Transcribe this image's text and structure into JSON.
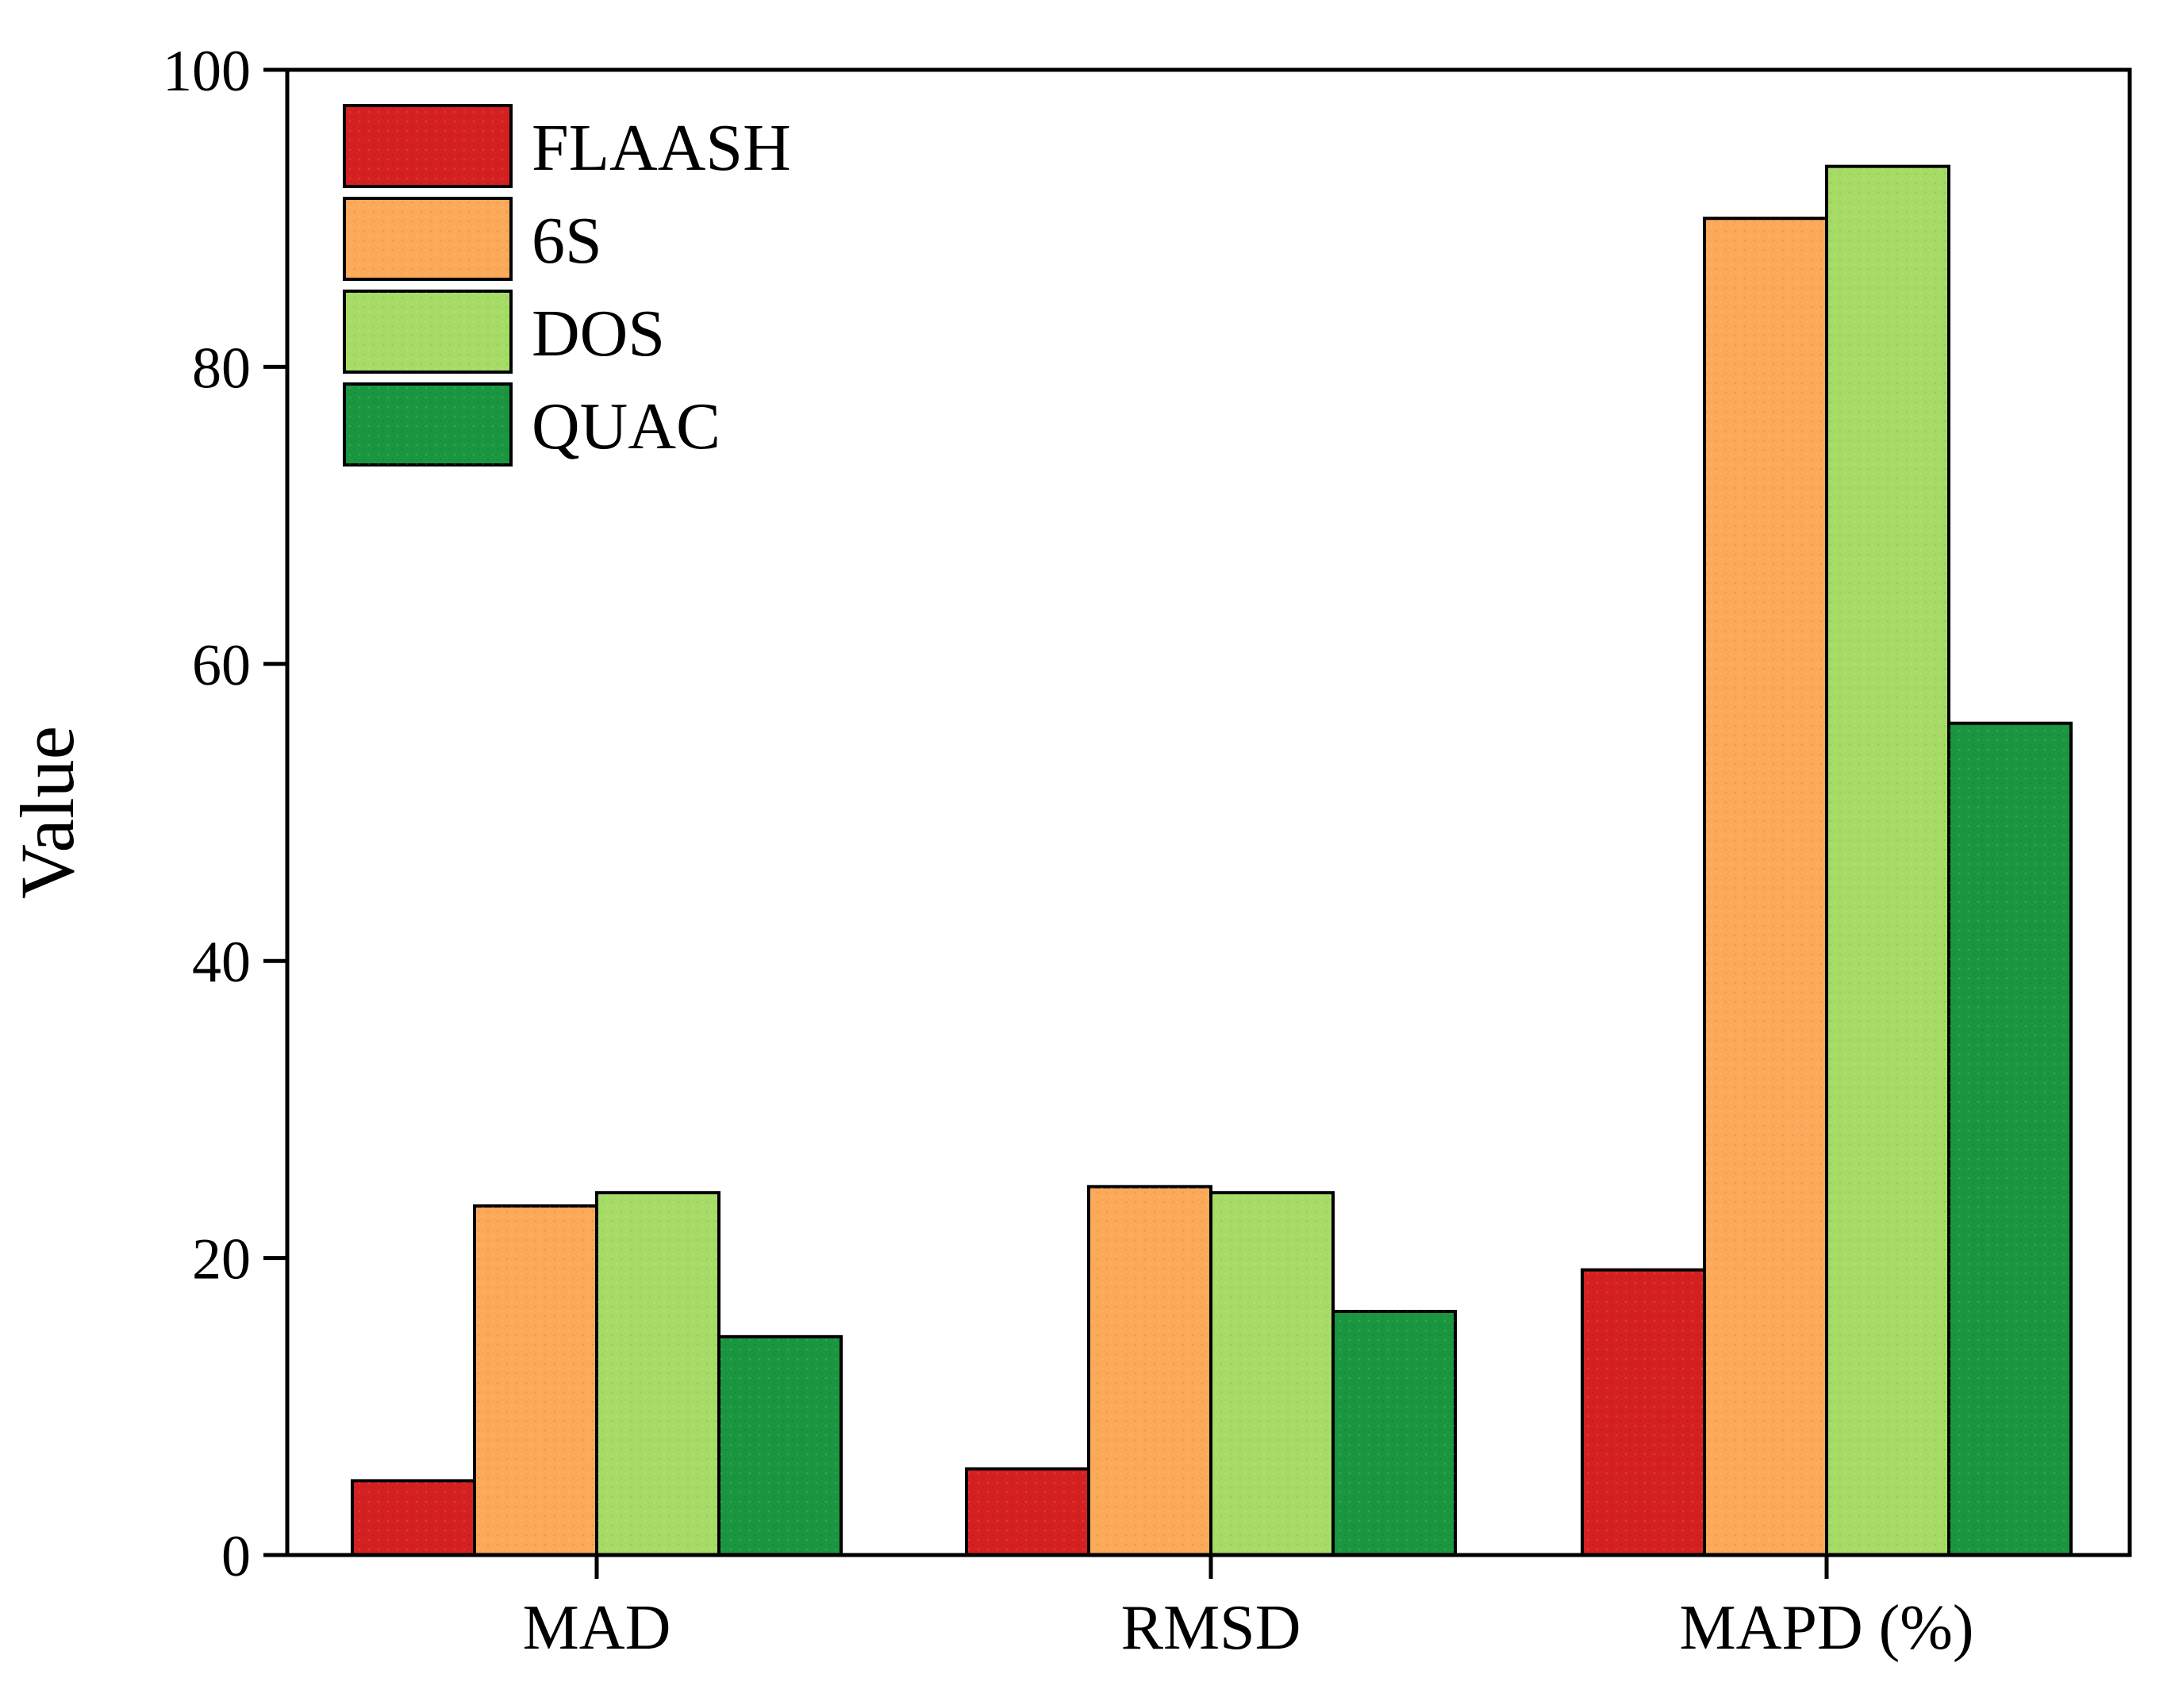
{
  "chart_data": {
    "type": "bar",
    "title": "",
    "xlabel": "",
    "ylabel": "Value",
    "ylim": [
      0,
      100
    ],
    "yticks": [
      0,
      20,
      40,
      60,
      80,
      100
    ],
    "ytick_labels": [
      "0",
      "20",
      "40",
      "60",
      "80",
      "100"
    ],
    "grid": false,
    "legend_position": "top-left",
    "categories": [
      "MAD",
      "RMSD",
      "MAPD (%)"
    ],
    "series": [
      {
        "name": "FLAASH",
        "color": "#d42020",
        "values": [
          5.0,
          5.8,
          19.2
        ]
      },
      {
        "name": "6S",
        "color": "#fca95a",
        "values": [
          23.5,
          24.8,
          90.0
        ]
      },
      {
        "name": "DOS",
        "color": "#a6dc66",
        "values": [
          24.4,
          24.4,
          93.5
        ]
      },
      {
        "name": "QUAC",
        "color": "#1a9640",
        "values": [
          14.7,
          16.4,
          56.0
        ]
      }
    ]
  }
}
